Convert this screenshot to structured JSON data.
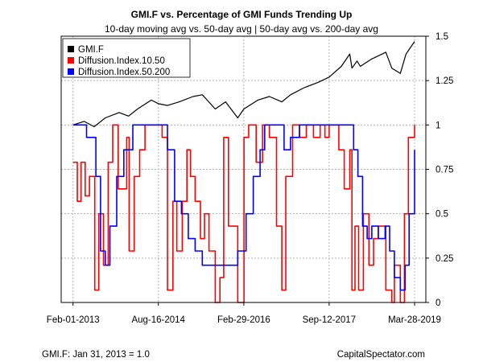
{
  "chart_data": {
    "type": "line",
    "title": "GMI.F vs. Percentage of GMI Funds Trending Up",
    "subtitle": "10-day moving avg vs. 50-day avg | 50-day avg vs. 200-day avg",
    "x_tick_labels": [
      "Feb-01-2013",
      "Aug-16-2014",
      "Feb-29-2016",
      "Sep-12-2017",
      "Mar-28-2019"
    ],
    "x_tick_dates": [
      "2013-02-01",
      "2014-08-16",
      "2016-02-29",
      "2017-09-12",
      "2019-03-28"
    ],
    "xlim": [
      "2012-11-15",
      "2019-06-10"
    ],
    "y_ticks": [
      0,
      0.25,
      0.5,
      0.75,
      1,
      1.25,
      1.5
    ],
    "y_tick_labels": [
      "0",
      "0.25",
      "0.5",
      "0.75",
      "1",
      "1.25",
      "1.5"
    ],
    "ylim": [
      0,
      1.5
    ],
    "grid": true,
    "legend_position": "top-left",
    "series": [
      {
        "name": "GMI.F",
        "color": "#000000",
        "points": [
          [
            "2013-02-01",
            1.0
          ],
          [
            "2013-04-15",
            1.02
          ],
          [
            "2013-06-20",
            0.99
          ],
          [
            "2013-09-01",
            1.04
          ],
          [
            "2013-12-01",
            1.07
          ],
          [
            "2014-02-01",
            1.05
          ],
          [
            "2014-04-01",
            1.09
          ],
          [
            "2014-07-01",
            1.14
          ],
          [
            "2014-08-16",
            1.12
          ],
          [
            "2014-10-15",
            1.11
          ],
          [
            "2015-01-01",
            1.13
          ],
          [
            "2015-04-01",
            1.16
          ],
          [
            "2015-06-01",
            1.17
          ],
          [
            "2015-08-25",
            1.09
          ],
          [
            "2015-11-01",
            1.13
          ],
          [
            "2016-01-20",
            1.04
          ],
          [
            "2016-02-29",
            1.09
          ],
          [
            "2016-06-01",
            1.14
          ],
          [
            "2016-08-15",
            1.16
          ],
          [
            "2016-11-05",
            1.13
          ],
          [
            "2017-01-01",
            1.17
          ],
          [
            "2017-04-01",
            1.21
          ],
          [
            "2017-07-01",
            1.24
          ],
          [
            "2017-09-12",
            1.27
          ],
          [
            "2017-12-01",
            1.33
          ],
          [
            "2018-01-26",
            1.4
          ],
          [
            "2018-02-09",
            1.32
          ],
          [
            "2018-03-15",
            1.36
          ],
          [
            "2018-04-05",
            1.33
          ],
          [
            "2018-06-15",
            1.37
          ],
          [
            "2018-09-20",
            1.41
          ],
          [
            "2018-10-29",
            1.32
          ],
          [
            "2018-12-24",
            1.29
          ],
          [
            "2019-01-31",
            1.4
          ],
          [
            "2019-03-28",
            1.47
          ]
        ]
      },
      {
        "name": "Diffusion.Index.10.50",
        "color": "#ff0000",
        "points": [
          [
            "2013-02-01",
            0.79
          ],
          [
            "2013-03-01",
            0.57
          ],
          [
            "2013-03-25",
            0.79
          ],
          [
            "2013-04-22",
            0.6
          ],
          [
            "2013-05-20",
            0.71
          ],
          [
            "2013-06-24",
            0.07
          ],
          [
            "2013-07-20",
            0.5
          ],
          [
            "2013-08-20",
            0.21
          ],
          [
            "2013-09-20",
            0.79
          ],
          [
            "2013-10-20",
            1.0
          ],
          [
            "2013-11-25",
            0.64
          ],
          [
            "2014-01-20",
            0.93
          ],
          [
            "2014-02-05",
            0.29
          ],
          [
            "2014-03-10",
            0.71
          ],
          [
            "2014-04-15",
            0.86
          ],
          [
            "2014-05-20",
            1.0
          ],
          [
            "2014-08-16",
            1.0
          ],
          [
            "2014-09-10",
            0.93
          ],
          [
            "2014-10-15",
            0.07
          ],
          [
            "2014-11-20",
            0.57
          ],
          [
            "2014-12-15",
            0.29
          ],
          [
            "2015-01-20",
            0.57
          ],
          [
            "2015-02-20",
            0.86
          ],
          [
            "2015-03-15",
            0.71
          ],
          [
            "2015-04-15",
            0.57
          ],
          [
            "2015-05-20",
            0.36
          ],
          [
            "2015-06-15",
            0.5
          ],
          [
            "2015-07-15",
            0.29
          ],
          [
            "2015-08-25",
            0.0
          ],
          [
            "2015-09-25",
            0.14
          ],
          [
            "2015-10-20",
            0.93
          ],
          [
            "2015-11-20",
            0.43
          ],
          [
            "2016-01-20",
            0.0
          ],
          [
            "2016-03-01",
            0.93
          ],
          [
            "2016-04-01",
            1.0
          ],
          [
            "2016-05-20",
            0.79
          ],
          [
            "2016-07-01",
            1.0
          ],
          [
            "2016-08-15",
            0.93
          ],
          [
            "2016-10-01",
            0.43
          ],
          [
            "2016-11-05",
            0.07
          ],
          [
            "2016-12-01",
            0.71
          ],
          [
            "2017-01-15",
            1.0
          ],
          [
            "2017-03-01",
            0.93
          ],
          [
            "2017-04-15",
            1.0
          ],
          [
            "2017-06-01",
            0.93
          ],
          [
            "2017-07-15",
            1.0
          ],
          [
            "2017-08-15",
            0.93
          ],
          [
            "2017-09-12",
            1.0
          ],
          [
            "2017-11-15",
            0.86
          ],
          [
            "2017-12-20",
            0.64
          ],
          [
            "2018-01-26",
            0.86
          ],
          [
            "2018-02-09",
            0.07
          ],
          [
            "2018-03-01",
            0.43
          ],
          [
            "2018-03-25",
            0.07
          ],
          [
            "2018-04-25",
            0.5
          ],
          [
            "2018-06-01",
            0.21
          ],
          [
            "2018-07-01",
            0.36
          ],
          [
            "2018-08-01",
            0.43
          ],
          [
            "2018-09-20",
            0.07
          ],
          [
            "2018-10-29",
            0.0
          ],
          [
            "2018-11-15",
            0.21
          ],
          [
            "2018-12-24",
            0.0
          ],
          [
            "2019-01-20",
            0.5
          ],
          [
            "2019-02-15",
            0.93
          ],
          [
            "2019-03-28",
            1.0
          ]
        ]
      },
      {
        "name": "Diffusion.Index.50.200",
        "color": "#0000ff",
        "points": [
          [
            "2013-02-01",
            1.0
          ],
          [
            "2013-05-01",
            0.93
          ],
          [
            "2013-07-01",
            0.71
          ],
          [
            "2013-08-01",
            0.29
          ],
          [
            "2013-09-01",
            0.21
          ],
          [
            "2013-10-01",
            0.43
          ],
          [
            "2013-11-15",
            0.71
          ],
          [
            "2014-01-01",
            0.86
          ],
          [
            "2014-03-01",
            1.0
          ],
          [
            "2014-08-16",
            1.0
          ],
          [
            "2014-10-15",
            0.86
          ],
          [
            "2014-12-01",
            0.57
          ],
          [
            "2015-01-15",
            0.5
          ],
          [
            "2015-03-01",
            0.36
          ],
          [
            "2015-04-15",
            0.29
          ],
          [
            "2015-06-01",
            0.21
          ],
          [
            "2015-07-15",
            0.21
          ],
          [
            "2015-08-25",
            0.21
          ],
          [
            "2015-10-01",
            0.21
          ],
          [
            "2015-11-15",
            0.21
          ],
          [
            "2016-01-20",
            0.29
          ],
          [
            "2016-03-15",
            0.5
          ],
          [
            "2016-05-01",
            0.71
          ],
          [
            "2016-06-15",
            0.86
          ],
          [
            "2016-07-15",
            1.0
          ],
          [
            "2016-10-01",
            1.0
          ],
          [
            "2016-11-20",
            0.86
          ],
          [
            "2017-01-01",
            0.93
          ],
          [
            "2017-03-01",
            1.0
          ],
          [
            "2017-09-12",
            1.0
          ],
          [
            "2017-11-15",
            1.0
          ],
          [
            "2018-01-26",
            1.0
          ],
          [
            "2018-02-20",
            0.86
          ],
          [
            "2018-03-20",
            0.71
          ],
          [
            "2018-04-20",
            0.43
          ],
          [
            "2018-05-20",
            0.36
          ],
          [
            "2018-06-20",
            0.43
          ],
          [
            "2018-08-01",
            0.36
          ],
          [
            "2018-09-15",
            0.43
          ],
          [
            "2018-10-15",
            0.29
          ],
          [
            "2018-11-15",
            0.14
          ],
          [
            "2018-12-24",
            0.07
          ],
          [
            "2019-01-25",
            0.21
          ],
          [
            "2019-02-20",
            0.5
          ],
          [
            "2019-03-28",
            0.86
          ]
        ]
      }
    ]
  },
  "footer": {
    "left_note": "GMI.F: Jan 31, 2013 = 1.0",
    "right_note": "CapitalSpectator.com"
  },
  "colors": {
    "grid": "#b4b4b4",
    "axis": "#000000"
  }
}
